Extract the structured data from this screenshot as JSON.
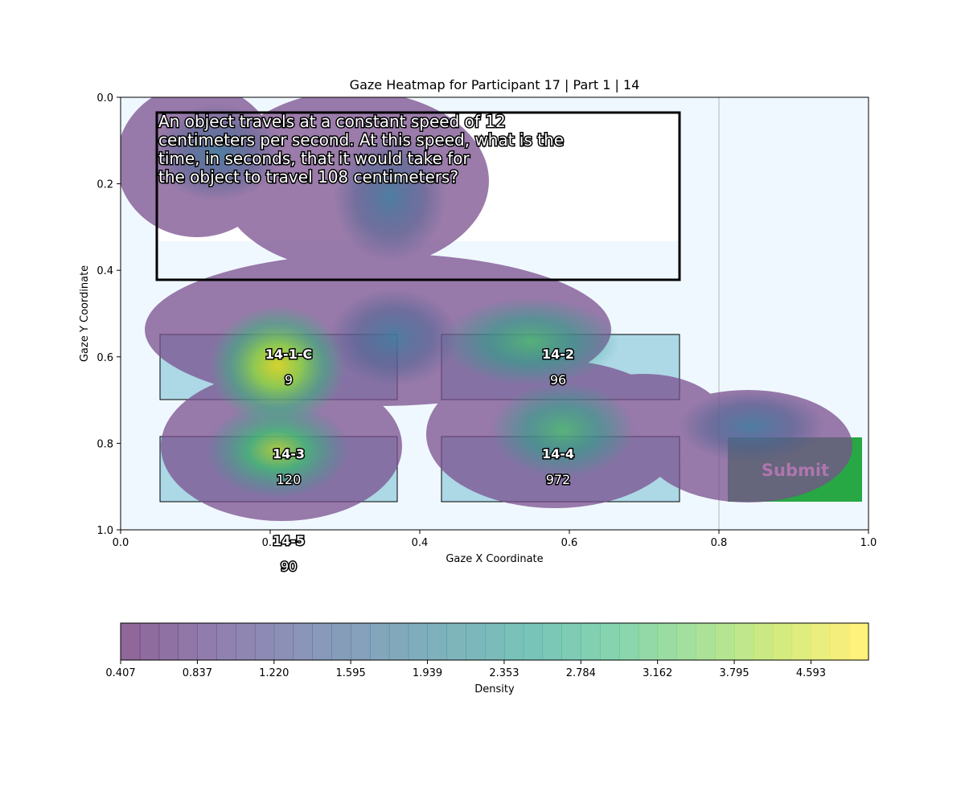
{
  "chart_data": {
    "type": "heatmap",
    "title": "Gaze Heatmap for Participant 17 | Part 1 | 14",
    "xlabel": "Gaze X Coordinate",
    "ylabel": "Gaze Y Coordinate",
    "xlim": [
      0,
      1
    ],
    "ylim": [
      1,
      0
    ],
    "xticks": [
      {
        "value": 0,
        "label": "0.0"
      },
      0.2,
      0.4,
      0.6,
      0.8,
      {
        "value": 1,
        "label": "1.0"
      }
    ],
    "yticks": [
      {
        "value": 0,
        "label": "0.0"
      },
      0.2,
      0.4,
      0.6,
      0.8,
      {
        "value": 1,
        "label": "1.0"
      }
    ],
    "question": "An object travels at a constant speed of 12 centimeters per second. At this speed, what is the time, in seconds, that it would take for the object to travel 108 centimeters?",
    "options": [
      {
        "id": "14-1-C",
        "value": 9
      },
      {
        "id": "14-2",
        "value": 96
      },
      {
        "id": "14-3",
        "value": 120
      },
      {
        "id": "14-4",
        "value": 972
      },
      {
        "id": "14-5",
        "value": 90
      }
    ],
    "submit": "Submit",
    "colorbar": {
      "label": "Density",
      "ticks": [
        0.407,
        0.837,
        {
          "value": 1.22,
          "label": "1.220"
        },
        1.595,
        1.939,
        2.353,
        2.784,
        3.162,
        3.795,
        4.593
      ]
    }
  }
}
